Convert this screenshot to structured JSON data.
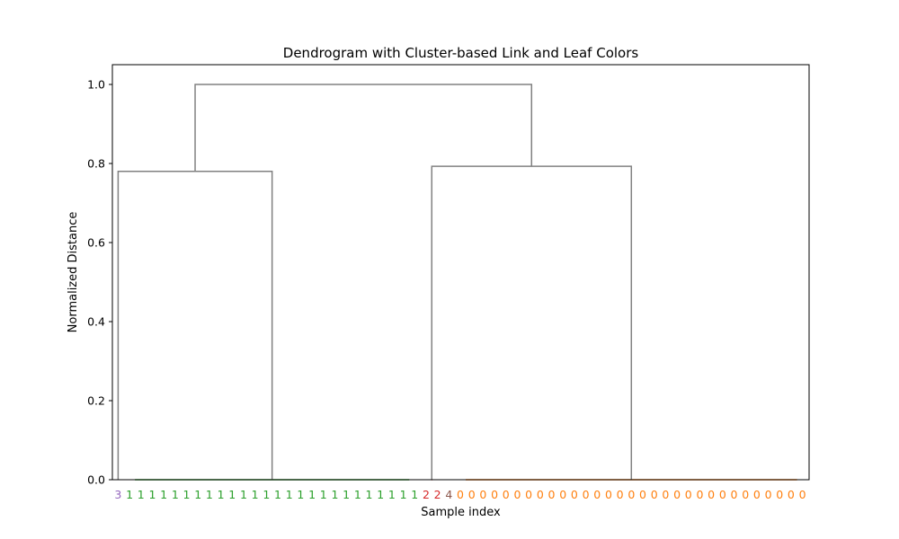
{
  "chart_data": {
    "type": "dendrogram",
    "title": "Dendrogram with Cluster-based Link and Leaf Colors",
    "xlabel": "Sample index",
    "ylabel": "Normalized Distance",
    "ylim": [
      0,
      1.05
    ],
    "yticks": [
      0.0,
      0.2,
      0.4,
      0.6,
      0.8,
      1.0
    ],
    "ytick_labels": [
      "0.0",
      "0.2",
      "0.4",
      "0.6",
      "0.8",
      "1.0"
    ],
    "leaf_labels": [
      "3",
      "1",
      "1",
      "1",
      "1",
      "1",
      "1",
      "1",
      "1",
      "1",
      "1",
      "1",
      "1",
      "1",
      "1",
      "1",
      "1",
      "1",
      "1",
      "1",
      "1",
      "1",
      "1",
      "1",
      "1",
      "1",
      "1",
      "2",
      "2",
      "4",
      "0",
      "0",
      "0",
      "0",
      "0",
      "0",
      "0",
      "0",
      "0",
      "0",
      "0",
      "0",
      "0",
      "0",
      "0",
      "0",
      "0",
      "0",
      "0",
      "0",
      "0",
      "0",
      "0",
      "0",
      "0",
      "0",
      "0",
      "0",
      "0",
      "0",
      "0"
    ],
    "cluster_colors": {
      "0": "#ff7f0e",
      "1": "#2ca02c",
      "2": "#d62728",
      "3": "#9467bd",
      "4": "#8c564b"
    },
    "link_color": "#808080",
    "clusters": [
      {
        "label": "3",
        "first_leaf": 0,
        "last_leaf": 0,
        "height": 0.0
      },
      {
        "label": "1",
        "first_leaf": 1,
        "last_leaf": 26,
        "height": 0.0
      },
      {
        "label": "2",
        "first_leaf": 27,
        "last_leaf": 28,
        "height": 0.0
      },
      {
        "label": "4",
        "first_leaf": 29,
        "last_leaf": 29,
        "height": 0.0
      },
      {
        "label": "0",
        "first_leaf": 30,
        "last_leaf": 60,
        "height": 0.0
      }
    ],
    "merges": [
      {
        "left": "3",
        "right": "1",
        "height": 0.78,
        "name": "A"
      },
      {
        "left": "2",
        "right": "0",
        "height": 0.793,
        "name": "B"
      },
      {
        "left": "A",
        "right": "B",
        "height": 1.0,
        "name": "root"
      }
    ]
  }
}
